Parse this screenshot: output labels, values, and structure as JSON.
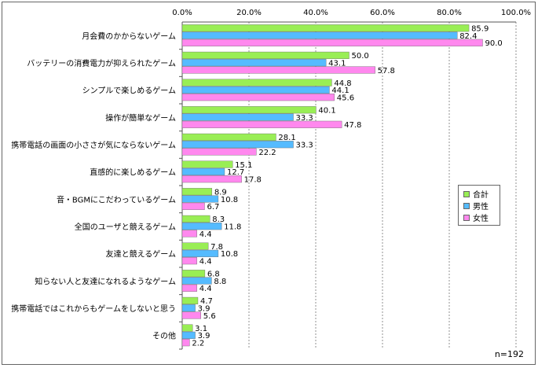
{
  "chart_data": {
    "type": "bar",
    "orientation": "horizontal",
    "categories": [
      "月会費のかからないゲーム",
      "バッテリーの消費電力が抑えられたゲーム",
      "シンプルで楽しめるゲーム",
      "操作が簡単なゲーム",
      "携帯電話の画面の小ささが気にならないゲーム",
      "直感的に楽しめるゲーム",
      "音・BGMにこだわっているゲーム",
      "全国のユーザと競えるゲーム",
      "友達と競えるゲーム",
      "知らない人と友達になれるようなゲーム",
      "携帯電話ではこれからもゲームをしないと思う",
      "その他"
    ],
    "series": [
      {
        "name": "合計",
        "color": "#99ee55",
        "values": [
          85.9,
          50.0,
          44.8,
          40.1,
          28.1,
          15.1,
          8.9,
          8.3,
          7.8,
          6.8,
          4.7,
          3.1
        ]
      },
      {
        "name": "男性",
        "color": "#55bbff",
        "values": [
          82.4,
          43.1,
          44.1,
          33.3,
          33.3,
          12.7,
          10.8,
          11.8,
          10.8,
          8.8,
          3.9,
          3.9
        ]
      },
      {
        "name": "女性",
        "color": "#ff88ee",
        "values": [
          90.0,
          57.8,
          45.6,
          47.8,
          22.2,
          17.8,
          6.7,
          4.4,
          4.4,
          4.4,
          5.6,
          2.2
        ]
      }
    ],
    "xlim": [
      0,
      100
    ],
    "ticks": [
      "0.0%",
      "20.0%",
      "40.0%",
      "60.0%",
      "80.0%",
      "100.0%"
    ],
    "tick_values": [
      0,
      20,
      40,
      60,
      80,
      100
    ],
    "grid": true,
    "legend_position": "right",
    "note": "n=192"
  }
}
